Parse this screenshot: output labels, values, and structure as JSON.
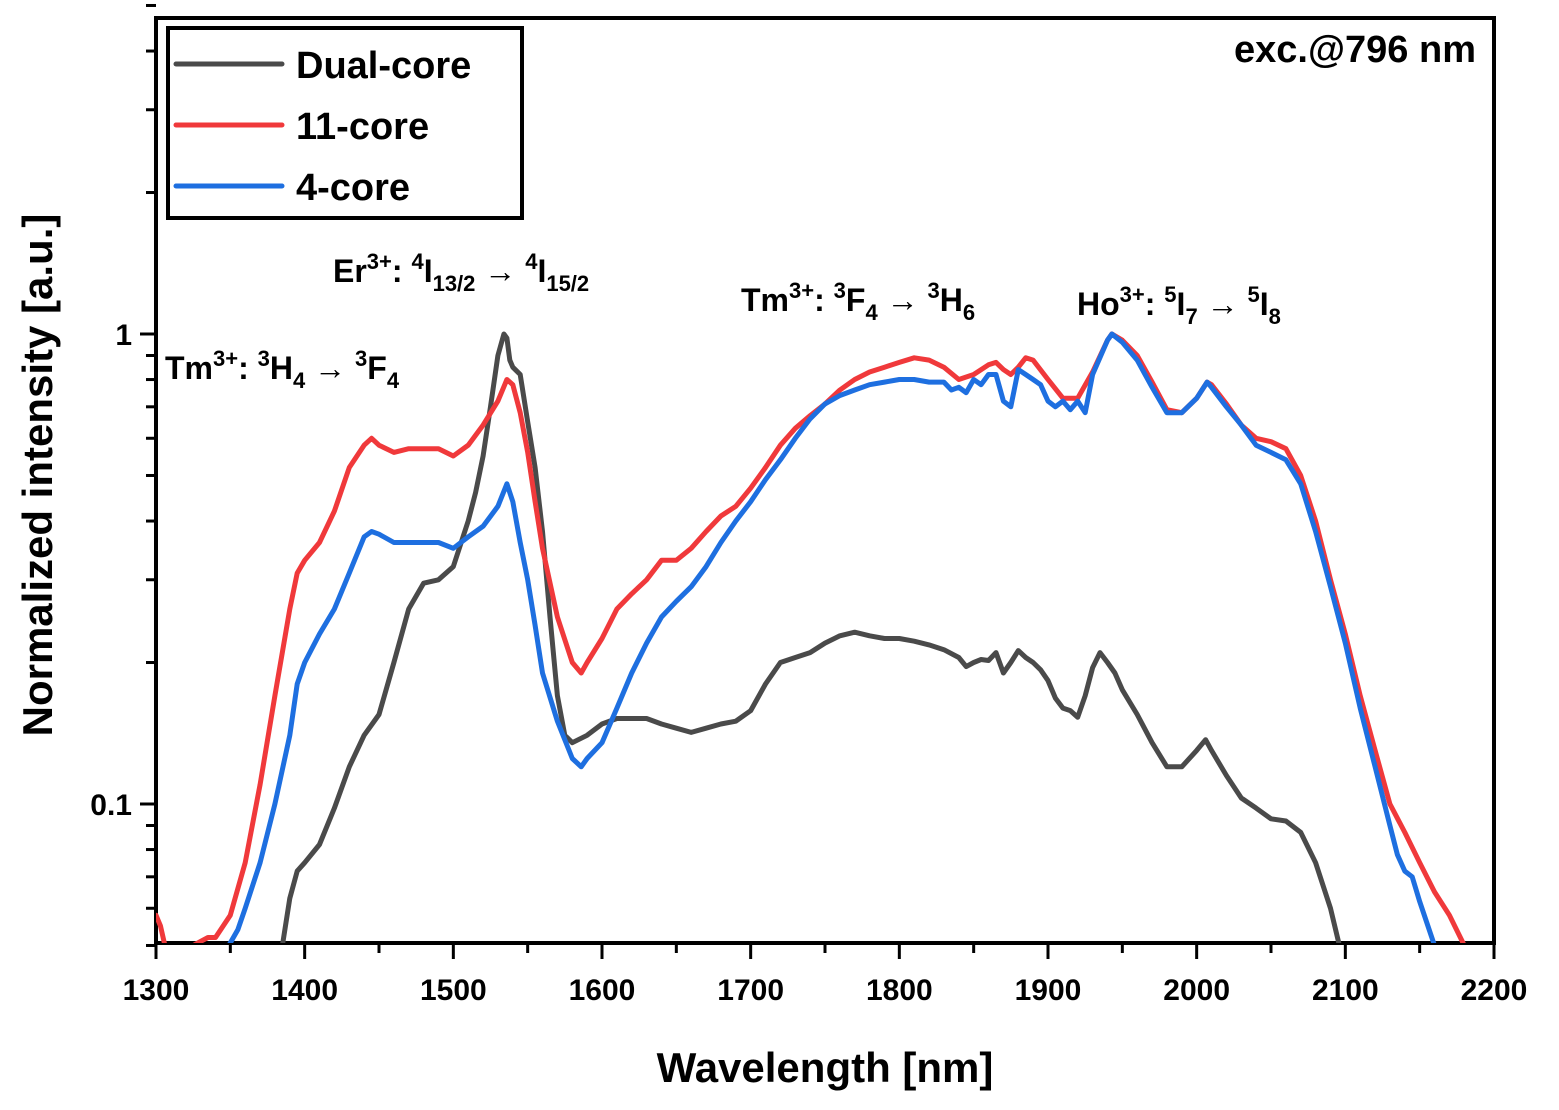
{
  "chart_data": {
    "type": "line",
    "title": "",
    "xlabel": "Wavelength [nm]",
    "ylabel": "Normalized intensity [a.u.]",
    "xlim": [
      1300,
      2200
    ],
    "ylim": [
      0.05,
      5
    ],
    "yscale": "log",
    "grid": false,
    "legend_position": "top-left",
    "x_ticks": [
      1300,
      1400,
      1500,
      1600,
      1700,
      1800,
      1900,
      2000,
      2100,
      2200
    ],
    "x_tick_labels": [
      "1300",
      "1400",
      "1500",
      "1600",
      "1700",
      "1800",
      "1900",
      "2000",
      "2100",
      "2200"
    ],
    "y_ticks": [
      0.1,
      1
    ],
    "y_tick_labels": [
      "0.1",
      "1"
    ],
    "corner_note": "exc.@796 nm",
    "annotations": [
      {
        "id": "tm-1470",
        "ion": "Tm",
        "charge": "3+",
        "upper": {
          "pre": "3",
          "sym": "H",
          "sub": "4"
        },
        "lower": {
          "pre": "3",
          "sym": "F",
          "sub": "4"
        },
        "arrow": "→"
      },
      {
        "id": "er-1530",
        "ion": "Er",
        "charge": "3+",
        "upper": {
          "pre": "4",
          "sym": "I",
          "sub": "13/2"
        },
        "lower": {
          "pre": "4",
          "sym": "I",
          "sub": "15/2"
        },
        "arrow": "→"
      },
      {
        "id": "tm-1800",
        "ion": "Tm",
        "charge": "3+",
        "upper": {
          "pre": "3",
          "sym": "F",
          "sub": "4"
        },
        "lower": {
          "pre": "3",
          "sym": "H",
          "sub": "6"
        },
        "arrow": "→"
      },
      {
        "id": "ho-2000",
        "ion": "Ho",
        "charge": "3+",
        "upper": {
          "pre": "5",
          "sym": "I",
          "sub": "7"
        },
        "lower": {
          "pre": "5",
          "sym": "I",
          "sub": "8"
        },
        "arrow": "→"
      }
    ],
    "series": [
      {
        "name": "Dual-core",
        "color": "#4a4a4a",
        "x": [
          1385,
          1390,
          1395,
          1400,
          1410,
          1420,
          1430,
          1440,
          1450,
          1460,
          1470,
          1480,
          1490,
          1500,
          1510,
          1515,
          1520,
          1525,
          1530,
          1534,
          1536,
          1538,
          1540,
          1545,
          1550,
          1555,
          1560,
          1565,
          1570,
          1575,
          1580,
          1590,
          1600,
          1610,
          1620,
          1630,
          1640,
          1650,
          1660,
          1670,
          1680,
          1690,
          1700,
          1710,
          1720,
          1730,
          1740,
          1750,
          1760,
          1770,
          1780,
          1790,
          1800,
          1810,
          1820,
          1830,
          1840,
          1845,
          1850,
          1855,
          1860,
          1865,
          1870,
          1875,
          1880,
          1885,
          1890,
          1895,
          1900,
          1905,
          1910,
          1915,
          1920,
          1925,
          1930,
          1935,
          1940,
          1945,
          1950,
          1960,
          1970,
          1980,
          1990,
          2000,
          2006,
          2010,
          2020,
          2030,
          2040,
          2050,
          2060,
          2070,
          2080,
          2090,
          2096
        ],
        "y": [
          0.05,
          0.063,
          0.072,
          0.075,
          0.082,
          0.098,
          0.12,
          0.14,
          0.155,
          0.2,
          0.26,
          0.295,
          0.3,
          0.32,
          0.4,
          0.46,
          0.55,
          0.7,
          0.9,
          1.0,
          0.98,
          0.88,
          0.85,
          0.82,
          0.65,
          0.52,
          0.38,
          0.25,
          0.17,
          0.14,
          0.135,
          0.14,
          0.148,
          0.152,
          0.152,
          0.152,
          0.148,
          0.145,
          0.142,
          0.145,
          0.148,
          0.15,
          0.158,
          0.18,
          0.2,
          0.205,
          0.21,
          0.22,
          0.228,
          0.232,
          0.228,
          0.225,
          0.225,
          0.222,
          0.218,
          0.213,
          0.205,
          0.196,
          0.2,
          0.203,
          0.202,
          0.21,
          0.19,
          0.2,
          0.212,
          0.205,
          0.2,
          0.193,
          0.183,
          0.168,
          0.16,
          0.158,
          0.153,
          0.17,
          0.195,
          0.21,
          0.2,
          0.19,
          0.175,
          0.155,
          0.135,
          0.12,
          0.12,
          0.13,
          0.137,
          0.13,
          0.115,
          0.103,
          0.098,
          0.093,
          0.092,
          0.087,
          0.075,
          0.06,
          0.05
        ]
      },
      {
        "name": "11-core",
        "color": "#f0393b",
        "x": [
          1300,
          1303,
          1306,
          1325,
          1330,
          1335,
          1340,
          1350,
          1360,
          1370,
          1380,
          1390,
          1395,
          1400,
          1410,
          1420,
          1430,
          1440,
          1445,
          1450,
          1460,
          1470,
          1480,
          1490,
          1500,
          1510,
          1520,
          1530,
          1536,
          1540,
          1545,
          1550,
          1555,
          1560,
          1570,
          1580,
          1586,
          1590,
          1600,
          1610,
          1620,
          1630,
          1640,
          1645,
          1650,
          1660,
          1670,
          1680,
          1690,
          1700,
          1710,
          1720,
          1730,
          1740,
          1750,
          1760,
          1770,
          1780,
          1790,
          1800,
          1810,
          1820,
          1830,
          1840,
          1850,
          1860,
          1865,
          1870,
          1875,
          1880,
          1885,
          1890,
          1900,
          1910,
          1920,
          1930,
          1940,
          1943,
          1950,
          1960,
          1970,
          1980,
          1990,
          2000,
          2007,
          2010,
          2020,
          2030,
          2040,
          2050,
          2060,
          2070,
          2080,
          2090,
          2100,
          2110,
          2120,
          2130,
          2140,
          2150,
          2160,
          2170,
          2180
        ],
        "y": [
          0.058,
          0.055,
          0.05,
          0.05,
          0.051,
          0.052,
          0.052,
          0.058,
          0.075,
          0.11,
          0.17,
          0.26,
          0.31,
          0.33,
          0.36,
          0.42,
          0.52,
          0.58,
          0.6,
          0.58,
          0.56,
          0.57,
          0.57,
          0.57,
          0.55,
          0.58,
          0.64,
          0.72,
          0.8,
          0.78,
          0.68,
          0.56,
          0.44,
          0.35,
          0.25,
          0.2,
          0.19,
          0.2,
          0.225,
          0.26,
          0.28,
          0.3,
          0.33,
          0.33,
          0.33,
          0.35,
          0.38,
          0.41,
          0.43,
          0.47,
          0.52,
          0.58,
          0.63,
          0.67,
          0.71,
          0.76,
          0.8,
          0.83,
          0.85,
          0.87,
          0.89,
          0.88,
          0.85,
          0.8,
          0.82,
          0.86,
          0.87,
          0.84,
          0.82,
          0.85,
          0.89,
          0.88,
          0.8,
          0.73,
          0.73,
          0.83,
          0.97,
          1.0,
          0.97,
          0.9,
          0.79,
          0.69,
          0.68,
          0.73,
          0.79,
          0.78,
          0.71,
          0.64,
          0.6,
          0.59,
          0.57,
          0.5,
          0.4,
          0.3,
          0.23,
          0.17,
          0.13,
          0.1,
          0.087,
          0.075,
          0.065,
          0.058,
          0.05
        ]
      },
      {
        "name": "4-core",
        "color": "#1e6fe0",
        "x": [
          1349,
          1355,
          1360,
          1370,
          1380,
          1390,
          1395,
          1400,
          1410,
          1420,
          1430,
          1440,
          1445,
          1450,
          1460,
          1470,
          1480,
          1490,
          1500,
          1510,
          1520,
          1530,
          1536,
          1540,
          1545,
          1550,
          1555,
          1560,
          1570,
          1580,
          1586,
          1590,
          1600,
          1610,
          1620,
          1630,
          1640,
          1650,
          1660,
          1670,
          1680,
          1690,
          1700,
          1710,
          1720,
          1730,
          1740,
          1750,
          1760,
          1770,
          1780,
          1790,
          1800,
          1810,
          1820,
          1830,
          1835,
          1840,
          1845,
          1850,
          1855,
          1860,
          1865,
          1870,
          1875,
          1880,
          1885,
          1890,
          1895,
          1900,
          1905,
          1910,
          1915,
          1920,
          1925,
          1930,
          1940,
          1943,
          1950,
          1960,
          1970,
          1980,
          1990,
          2000,
          2007,
          2010,
          2020,
          2030,
          2040,
          2050,
          2060,
          2070,
          2080,
          2090,
          2100,
          2110,
          2120,
          2130,
          2135,
          2140,
          2145,
          2150,
          2160
        ],
        "y": [
          0.05,
          0.054,
          0.06,
          0.075,
          0.1,
          0.14,
          0.18,
          0.2,
          0.23,
          0.26,
          0.31,
          0.37,
          0.38,
          0.375,
          0.36,
          0.36,
          0.36,
          0.36,
          0.35,
          0.37,
          0.39,
          0.43,
          0.48,
          0.44,
          0.36,
          0.3,
          0.24,
          0.19,
          0.15,
          0.125,
          0.12,
          0.125,
          0.135,
          0.16,
          0.19,
          0.22,
          0.25,
          0.27,
          0.29,
          0.32,
          0.36,
          0.4,
          0.44,
          0.49,
          0.54,
          0.6,
          0.66,
          0.71,
          0.74,
          0.76,
          0.78,
          0.79,
          0.8,
          0.8,
          0.79,
          0.79,
          0.76,
          0.77,
          0.75,
          0.8,
          0.78,
          0.82,
          0.82,
          0.72,
          0.7,
          0.84,
          0.82,
          0.8,
          0.78,
          0.72,
          0.7,
          0.72,
          0.69,
          0.72,
          0.68,
          0.82,
          0.97,
          1.0,
          0.96,
          0.88,
          0.77,
          0.68,
          0.68,
          0.73,
          0.79,
          0.77,
          0.7,
          0.64,
          0.58,
          0.56,
          0.54,
          0.48,
          0.38,
          0.29,
          0.22,
          0.16,
          0.12,
          0.09,
          0.078,
          0.072,
          0.07,
          0.062,
          0.05
        ]
      }
    ]
  }
}
